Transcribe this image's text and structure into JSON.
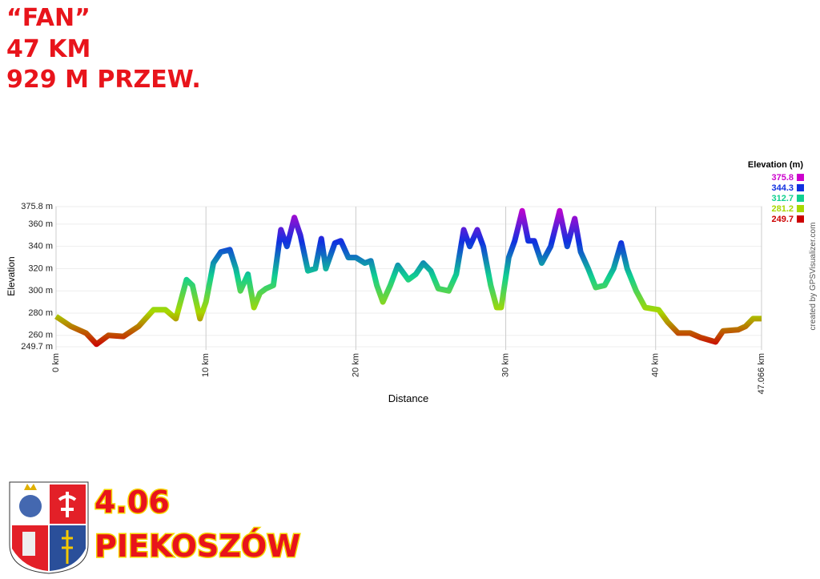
{
  "header": {
    "title": "“FAN”",
    "distance": "47 KM",
    "climb": "929 M PRZEW."
  },
  "chart_data": {
    "type": "line",
    "y_label": "Elevation",
    "x_label": "Distance",
    "credit": "created by GPSVisualizer.com",
    "legend_title": "Elevation (m)",
    "color_scale": [
      {
        "value": 375.8,
        "color": "#cc00cc"
      },
      {
        "value": 344.3,
        "color": "#1030e0"
      },
      {
        "value": 312.7,
        "color": "#10d090"
      },
      {
        "value": 281.2,
        "color": "#a8d800"
      },
      {
        "value": 249.7,
        "color": "#cc0000"
      }
    ],
    "xlim": [
      0,
      47.066
    ],
    "ylim": [
      249.7,
      375.8
    ],
    "xticks": [
      {
        "value": 0,
        "label": "0 km"
      },
      {
        "value": 10,
        "label": "10 km"
      },
      {
        "value": 20,
        "label": "20 km"
      },
      {
        "value": 30,
        "label": "30 km"
      },
      {
        "value": 40,
        "label": "40 km"
      },
      {
        "value": 47.066,
        "label": "47.066 km"
      }
    ],
    "yticks": [
      {
        "value": 249.7,
        "label": "249.7 m"
      },
      {
        "value": 260,
        "label": "260 m"
      },
      {
        "value": 280,
        "label": "280 m"
      },
      {
        "value": 300,
        "label": "300 m"
      },
      {
        "value": 320,
        "label": "320 m"
      },
      {
        "value": 340,
        "label": "340 m"
      },
      {
        "value": 360,
        "label": "360 m"
      },
      {
        "value": 375.8,
        "label": "375.8 m"
      }
    ],
    "grid": true,
    "x": [
      0,
      1,
      2,
      2.7,
      3.5,
      4.5,
      5.5,
      6.5,
      7.3,
      8,
      8.7,
      9.1,
      9.6,
      10,
      10.5,
      11,
      11.6,
      12,
      12.3,
      12.8,
      13.2,
      13.6,
      14,
      14.5,
      15,
      15.4,
      15.9,
      16.3,
      16.8,
      17.3,
      17.7,
      18,
      18.6,
      19,
      19.5,
      20,
      20.6,
      21,
      21.4,
      21.8,
      22.3,
      22.8,
      23.5,
      24,
      24.5,
      25,
      25.5,
      26.2,
      26.7,
      27.2,
      27.6,
      28.1,
      28.5,
      29,
      29.4,
      29.7,
      30.2,
      30.6,
      31.1,
      31.5,
      31.9,
      32.4,
      33,
      33.6,
      34.1,
      34.6,
      35,
      35.5,
      36,
      36.6,
      37.2,
      37.7,
      38.1,
      38.7,
      39.3,
      40.2,
      40.8,
      41.5,
      42.3,
      43,
      44,
      44.5,
      45.5,
      46,
      46.5,
      47.066
    ],
    "values": [
      277,
      268,
      262,
      252,
      260,
      259,
      268,
      283,
      283,
      275,
      310,
      305,
      275,
      290,
      325,
      335,
      337,
      320,
      300,
      315,
      285,
      298,
      302,
      305,
      355,
      340,
      366,
      350,
      318,
      320,
      347,
      320,
      343,
      345,
      330,
      330,
      325,
      327,
      305,
      290,
      305,
      323,
      310,
      315,
      325,
      318,
      302,
      300,
      315,
      355,
      340,
      355,
      340,
      305,
      285,
      285,
      330,
      345,
      372,
      345,
      345,
      325,
      340,
      372,
      340,
      365,
      335,
      320,
      303,
      305,
      320,
      343,
      320,
      300,
      285,
      283,
      272,
      262,
      262,
      258,
      254,
      264,
      265,
      268,
      275,
      275
    ]
  },
  "footer": {
    "date": "4.06",
    "place": "PIEKOSZÓW"
  }
}
